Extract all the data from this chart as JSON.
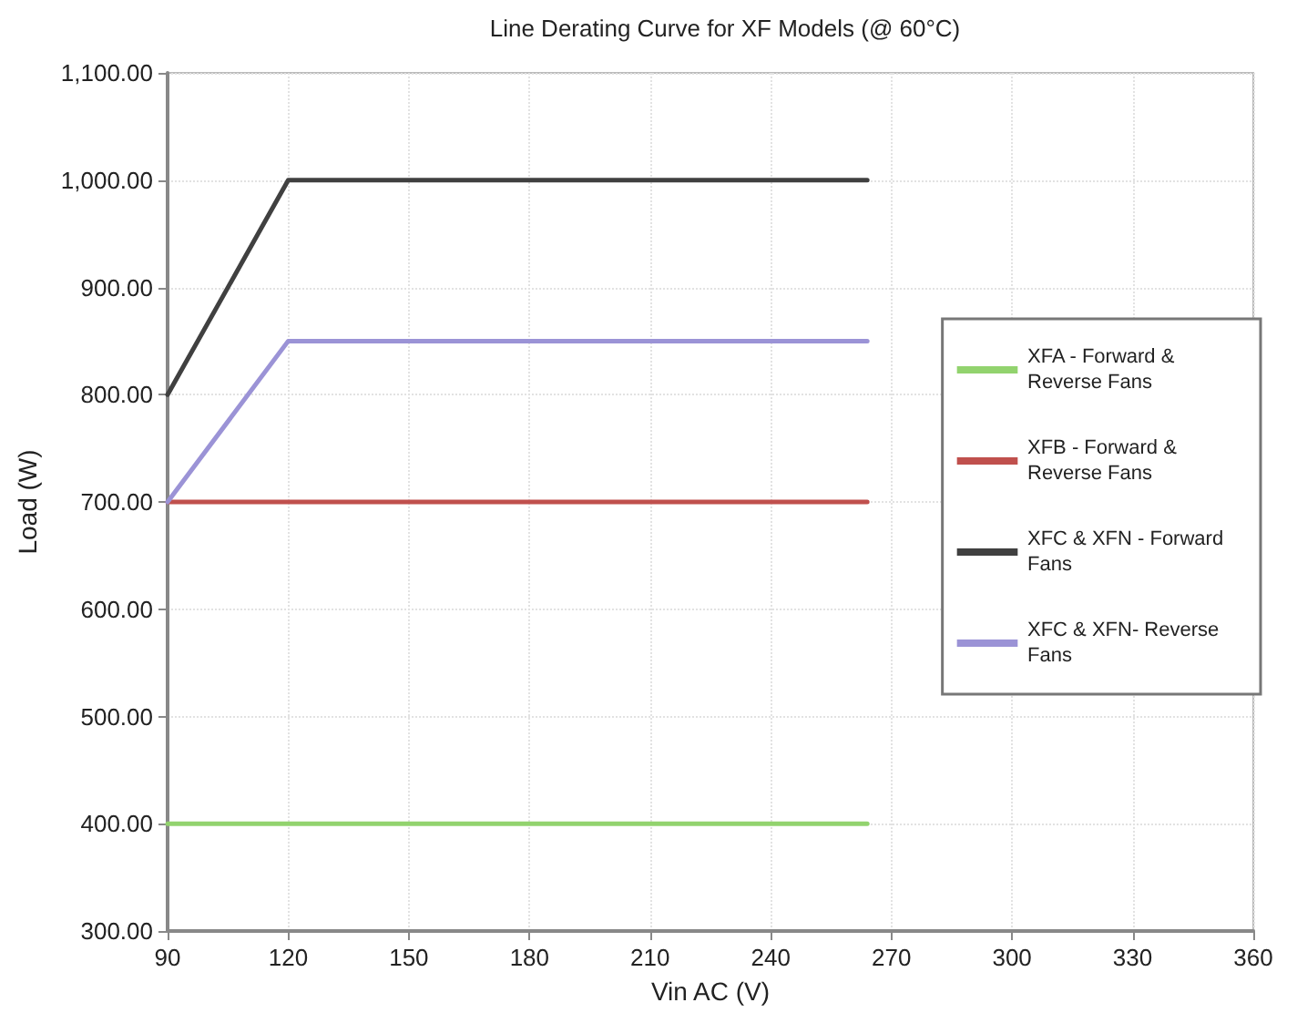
{
  "chart_data": {
    "type": "line",
    "title": "Line Derating Curve for XF Models (@ 60°C)",
    "xlabel": "Vin AC (V)",
    "ylabel": "Load (W)",
    "xlim": [
      90,
      360
    ],
    "xticks": [
      90,
      120,
      150,
      180,
      210,
      240,
      270,
      300,
      330,
      360
    ],
    "ylim": [
      300,
      1100
    ],
    "yticks": [
      {
        "value": 300,
        "label": "300.00"
      },
      {
        "value": 400,
        "label": "400.00"
      },
      {
        "value": 500,
        "label": "500.00"
      },
      {
        "value": 600,
        "label": "600.00"
      },
      {
        "value": 700,
        "label": "700.00"
      },
      {
        "value": 800,
        "label": "800.00"
      },
      {
        "value": 900,
        "label": "900.00"
      },
      {
        "value": 1000,
        "label": "1,000.00"
      },
      {
        "value": 1100,
        "label": "1,100.00"
      }
    ],
    "x": [
      90,
      120,
      264
    ],
    "series": [
      {
        "name": "XFA - Forward & Reverse Fans",
        "color": "#92d36e",
        "values": [
          400,
          400,
          400
        ]
      },
      {
        "name": "XFB - Forward & Reverse Fans",
        "color": "#c0504d",
        "values": [
          700,
          700,
          700
        ]
      },
      {
        "name": "XFC & XFN - Forward Fans",
        "color": "#404040",
        "values": [
          800,
          1000,
          1000
        ]
      },
      {
        "name": "XFC & XFN- Reverse Fans",
        "color": "#9b93d6",
        "values": [
          700,
          850,
          850
        ]
      }
    ],
    "grid": true,
    "legend": "right",
    "marker": "none",
    "line_style": "solid"
  }
}
